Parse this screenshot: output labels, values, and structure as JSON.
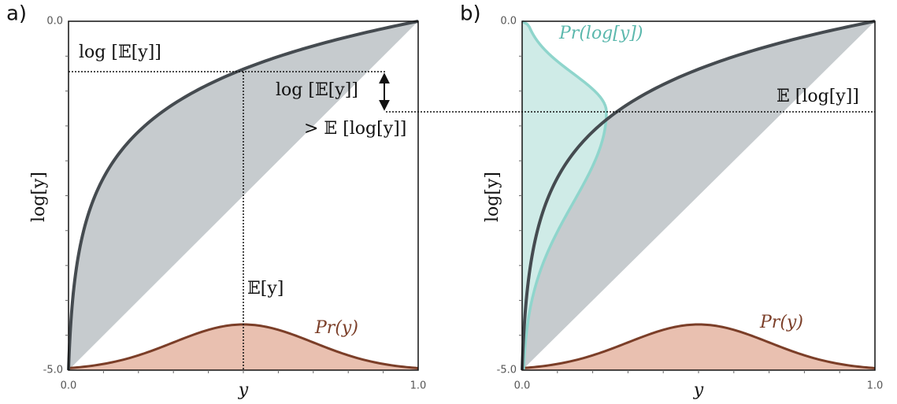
{
  "panels": [
    {
      "label": "a)",
      "y_axis_label": "log[y]",
      "x_axis_label": "y",
      "y_tick_labels": [
        "0.0",
        "-5.0"
      ],
      "x_tick_labels": [
        "0.0",
        "1.0"
      ],
      "annotations": [
        "log [𝔼[y]]",
        "log [𝔼[y]]",
        "> 𝔼 [log[y]]",
        "𝔼[y]",
        "Pr(y)"
      ]
    },
    {
      "label": "b)",
      "y_axis_label": "log[y]",
      "x_axis_label": "y",
      "y_tick_labels": [
        "0.0",
        "-5.0"
      ],
      "x_tick_labels": [
        "0.0",
        "1.0"
      ],
      "annotations": [
        "Pr(log[y])",
        "𝔼 [log[y]]",
        "Pr(y)"
      ]
    }
  ]
}
